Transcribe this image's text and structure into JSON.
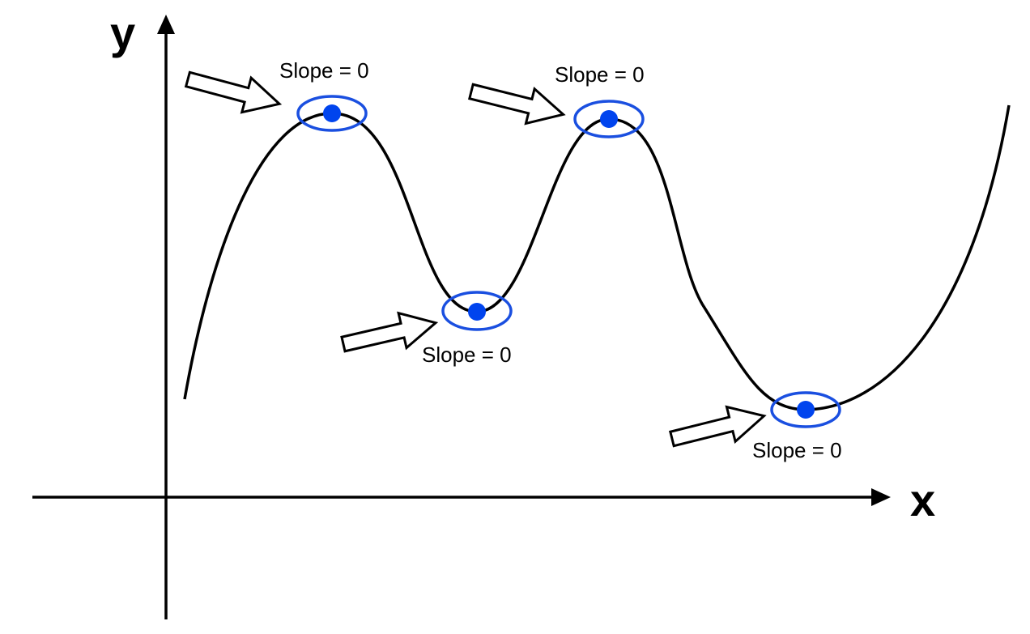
{
  "axes": {
    "x_label": "x",
    "y_label": "y"
  },
  "critical_points": [
    {
      "kind": "local maximum",
      "label": "Slope = 0"
    },
    {
      "kind": "local minimum",
      "label": "Slope = 0"
    },
    {
      "kind": "local maximum",
      "label": "Slope = 0"
    },
    {
      "kind": "local minimum",
      "label": "Slope = 0"
    }
  ],
  "colors": {
    "curve": "#000000",
    "axes": "#000000",
    "point_fill": "#0044ee",
    "point_ring": "#1a4fe0",
    "arrow_fill": "#ffffff",
    "arrow_stroke": "#000000"
  }
}
